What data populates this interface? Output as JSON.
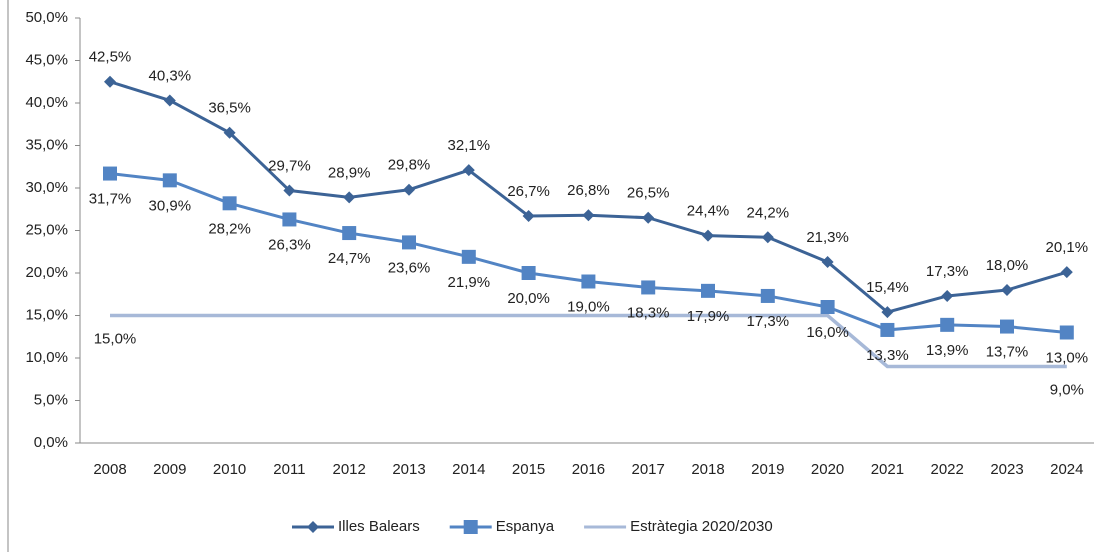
{
  "chart_data": {
    "type": "line",
    "categories": [
      "2008",
      "2009",
      "2010",
      "2011",
      "2012",
      "2013",
      "2014",
      "2015",
      "2016",
      "2017",
      "2018",
      "2019",
      "2020",
      "2021",
      "2022",
      "2023",
      "2024"
    ],
    "ylim": [
      0,
      50
    ],
    "yticks": [
      {
        "value": 0,
        "label": "0,0%"
      },
      {
        "value": 5,
        "label": "5,0%"
      },
      {
        "value": 10,
        "label": "10,0%"
      },
      {
        "value": 15,
        "label": "15,0%"
      },
      {
        "value": 20,
        "label": "20,0%"
      },
      {
        "value": 25,
        "label": "25,0%"
      },
      {
        "value": 30,
        "label": "30,0%"
      },
      {
        "value": 35,
        "label": "35,0%"
      },
      {
        "value": 40,
        "label": "40,0%"
      },
      {
        "value": 45,
        "label": "45,0%"
      },
      {
        "value": 50,
        "label": "50,0%"
      }
    ],
    "series": [
      {
        "name": "Illes Balears",
        "color": "#3c6396",
        "marker": "diamond",
        "values": [
          42.5,
          40.3,
          36.5,
          29.7,
          28.9,
          29.8,
          32.1,
          26.7,
          26.8,
          26.5,
          24.4,
          24.2,
          21.3,
          15.4,
          17.3,
          18.0,
          20.1
        ],
        "value_labels": [
          "42,5%",
          "40,3%",
          "36,5%",
          "29,7%",
          "28,9%",
          "29,8%",
          "32,1%",
          "26,7%",
          "26,8%",
          "26,5%",
          "24,4%",
          "24,2%",
          "21,3%",
          "15,4%",
          "17,3%",
          "18,0%",
          "20,1%"
        ]
      },
      {
        "name": "Espanya",
        "color": "#5284c4",
        "marker": "square",
        "values": [
          31.7,
          30.9,
          28.2,
          26.3,
          24.7,
          23.6,
          21.9,
          20.0,
          19.0,
          18.3,
          17.9,
          17.3,
          16.0,
          13.3,
          13.9,
          13.7,
          13.0
        ],
        "value_labels": [
          "31,7%",
          "30,9%",
          "28,2%",
          "26,3%",
          "24,7%",
          "23,6%",
          "21,9%",
          "20,0%",
          "19,0%",
          "18,3%",
          "17,9%",
          "17,3%",
          "16,0%",
          "13,3%",
          "13,9%",
          "13,7%",
          "13,0%"
        ]
      },
      {
        "name": "Estràtegia 2020/2030",
        "color": "#a7b9d8",
        "values": [
          15,
          15,
          15,
          15,
          15,
          15,
          15,
          15,
          15,
          15,
          15,
          15,
          15,
          9,
          9,
          9,
          9
        ],
        "value_labels": [
          "15,0%",
          null,
          null,
          null,
          null,
          null,
          null,
          null,
          null,
          null,
          null,
          null,
          null,
          null,
          null,
          null,
          "9,0%"
        ]
      }
    ]
  }
}
